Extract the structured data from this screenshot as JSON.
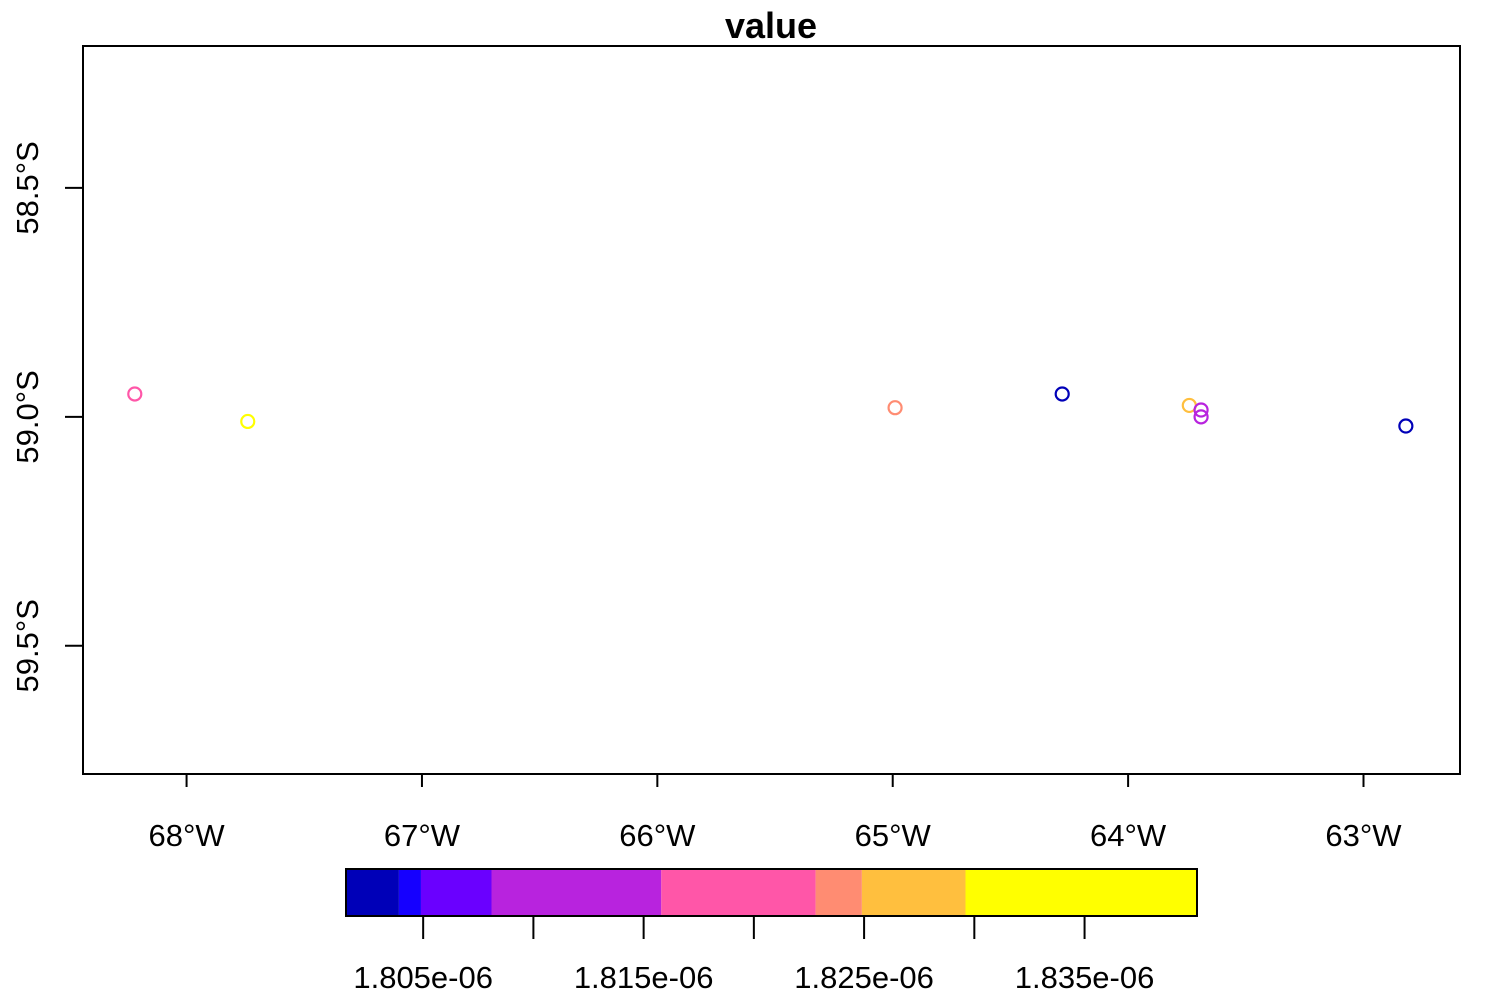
{
  "chart_data": {
    "type": "scatter",
    "title": "value",
    "xlabel": "",
    "ylabel": "",
    "x_units": "degrees longitude",
    "y_units": "degrees latitude",
    "xlim": [
      -68.44,
      -62.59
    ],
    "ylim": [
      -59.78,
      -58.19
    ],
    "x_ticks": [
      {
        "value": -68,
        "label": "68°W"
      },
      {
        "value": -67,
        "label": "67°W"
      },
      {
        "value": -66,
        "label": "66°W"
      },
      {
        "value": -65,
        "label": "65°W"
      },
      {
        "value": -64,
        "label": "64°W"
      },
      {
        "value": -63,
        "label": "63°W"
      }
    ],
    "y_ticks": [
      {
        "value": -58.5,
        "label": "58.5°S"
      },
      {
        "value": -59.0,
        "label": "59.0°S"
      },
      {
        "value": -59.5,
        "label": "59.5°S"
      }
    ],
    "grid": false,
    "legend": {
      "placement": "bottom",
      "kind": "colorbar",
      "range": [
        1.8015e-06,
        1.8401e-06
      ],
      "bins": [
        {
          "from": 1.8015e-06,
          "to": 1.8039e-06,
          "color": "#0000b8"
        },
        {
          "from": 1.8039e-06,
          "to": 1.8049e-06,
          "color": "#1500ff"
        },
        {
          "from": 1.8049e-06,
          "to": 1.8081e-06,
          "color": "#6a00ff"
        },
        {
          "from": 1.8081e-06,
          "to": 1.8158e-06,
          "color": "#b823de"
        },
        {
          "from": 1.8158e-06,
          "to": 1.8228e-06,
          "color": "#ff56a8"
        },
        {
          "from": 1.8228e-06,
          "to": 1.8249e-06,
          "color": "#ff8c72"
        },
        {
          "from": 1.8249e-06,
          "to": 1.8296e-06,
          "color": "#ffbf3e"
        },
        {
          "from": 1.8296e-06,
          "to": 1.8401e-06,
          "color": "#ffff00"
        }
      ],
      "ticks": [
        1.805e-06,
        1.81e-06,
        1.815e-06,
        1.82e-06,
        1.825e-06,
        1.83e-06,
        1.835e-06
      ],
      "labels": [
        {
          "value": 1.805e-06,
          "label": "1.805e-06"
        },
        {
          "value": 1.815e-06,
          "label": "1.815e-06"
        },
        {
          "value": 1.825e-06,
          "label": "1.825e-06"
        },
        {
          "value": 1.835e-06,
          "label": "1.835e-06"
        }
      ]
    },
    "points": [
      {
        "x": -68.22,
        "y": -58.95,
        "value": 1.819e-06,
        "color": "#ff56a8"
      },
      {
        "x": -67.74,
        "y": -59.01,
        "value": 1.836e-06,
        "color": "#ffff00"
      },
      {
        "x": -64.99,
        "y": -58.98,
        "value": 1.824e-06,
        "color": "#ff8c72"
      },
      {
        "x": -64.28,
        "y": -58.95,
        "value": 1.802e-06,
        "color": "#0000b8"
      },
      {
        "x": -63.74,
        "y": -58.975,
        "value": 1.827e-06,
        "color": "#ffbf3e"
      },
      {
        "x": -63.69,
        "y": -58.985,
        "value": 1.812e-06,
        "color": "#b823de"
      },
      {
        "x": -63.69,
        "y": -59.0,
        "value": 1.811e-06,
        "color": "#b823de"
      },
      {
        "x": -62.82,
        "y": -59.02,
        "value": 1.803e-06,
        "color": "#0000b8"
      }
    ]
  }
}
